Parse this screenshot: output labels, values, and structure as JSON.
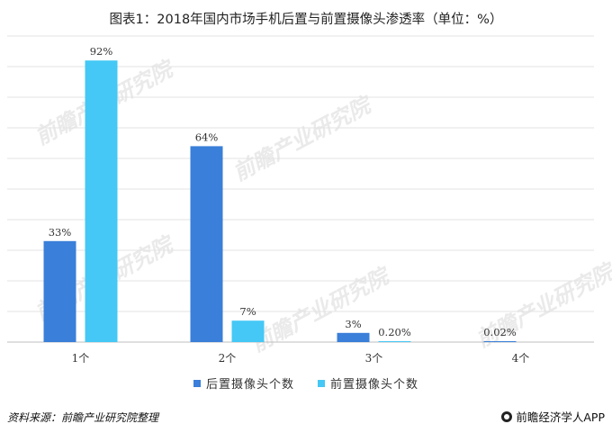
{
  "title": "图表1：2018年国内市场手机后置与前置摄像头渗透率（单位：%）",
  "source": "资料来源：前瞻产业研究院整理",
  "brand": "前瞻经济学人APP",
  "watermark": "前瞻产业研究院",
  "colors": {
    "rear": "#3a7fd9",
    "front": "#45c8f5",
    "grid": "#e3e3e3",
    "axis": "#bfbfbf"
  },
  "chart_data": {
    "type": "bar",
    "categories": [
      "1个",
      "2个",
      "3个",
      "4个"
    ],
    "series": [
      {
        "name": "后置摄像头个数",
        "values": [
          33,
          64,
          3,
          0.02
        ],
        "labels": [
          "33%",
          "64%",
          "3%",
          "0.02%"
        ]
      },
      {
        "name": "前置摄像头个数",
        "values": [
          92,
          7,
          0.2,
          null
        ],
        "labels": [
          "92%",
          "7%",
          "0.20%",
          ""
        ]
      }
    ],
    "ylim": [
      0,
      100
    ],
    "grid": true,
    "legend": "bottom"
  }
}
